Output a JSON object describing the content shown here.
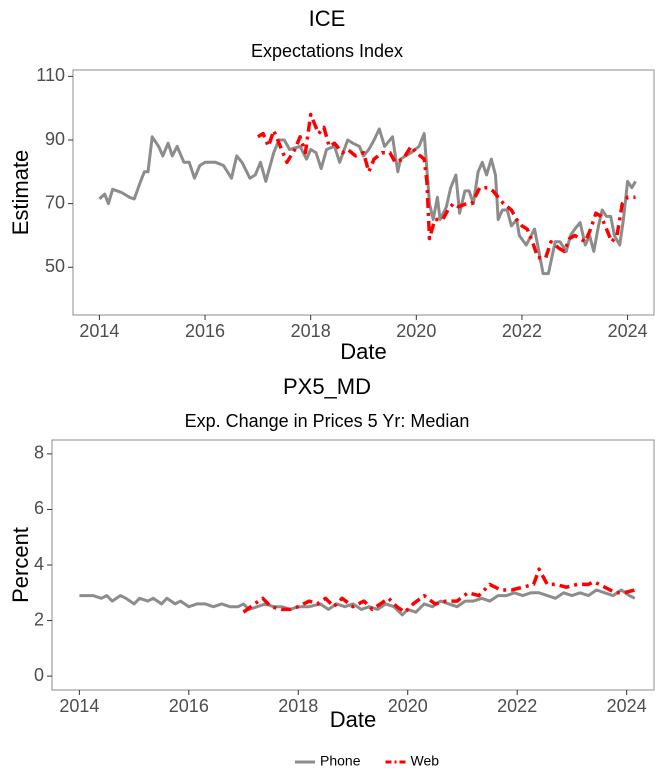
{
  "chart_data": [
    {
      "type": "line",
      "title": "ICE",
      "subtitle": "Expectations Index",
      "x_label": "Date",
      "y_label": "Estimate",
      "xlim": [
        2013.5,
        2024.5
      ],
      "ylim": [
        35,
        112
      ],
      "xticks": [
        2014,
        2016,
        2018,
        2020,
        2022,
        2024
      ],
      "yticks": [
        50,
        70,
        90,
        110
      ],
      "series": [
        {
          "name": "Phone",
          "color": "#8c8c8c",
          "x": [
            2014.0,
            2014.1,
            2014.17,
            2014.25,
            2014.42,
            2014.57,
            2014.66,
            2014.78,
            2014.85,
            2014.92,
            2015.0,
            2015.12,
            2015.2,
            2015.3,
            2015.38,
            2015.47,
            2015.6,
            2015.7,
            2015.8,
            2015.9,
            2016.0,
            2016.2,
            2016.35,
            2016.5,
            2016.6,
            2016.7,
            2016.85,
            2016.95,
            2017.05,
            2017.15,
            2017.3,
            2017.4,
            2017.5,
            2017.6,
            2017.8,
            2017.92,
            2018.0,
            2018.1,
            2018.2,
            2018.3,
            2018.45,
            2018.55,
            2018.7,
            2018.8,
            2018.92,
            2019.0,
            2019.1,
            2019.2,
            2019.3,
            2019.4,
            2019.55,
            2019.65,
            2019.7,
            2019.8,
            2019.9,
            2020.05,
            2020.15,
            2020.25,
            2020.32,
            2020.4,
            2020.45,
            2020.57,
            2020.65,
            2020.75,
            2020.82,
            2020.92,
            2021.0,
            2021.08,
            2021.17,
            2021.25,
            2021.33,
            2021.42,
            2021.5,
            2021.55,
            2021.63,
            2021.72,
            2021.8,
            2021.9,
            2021.95,
            2022.08,
            2022.24,
            2022.4,
            2022.5,
            2022.63,
            2022.72,
            2022.84,
            2022.92,
            2023.0,
            2023.1,
            2023.2,
            2023.28,
            2023.36,
            2023.45,
            2023.52,
            2023.6,
            2023.68,
            2023.75,
            2023.85,
            2023.92,
            2024.0,
            2024.08,
            2024.15
          ],
          "values": [
            71.5,
            73,
            70,
            74.5,
            73.5,
            72,
            71.5,
            77,
            80,
            80,
            91,
            88,
            85,
            89,
            85,
            88,
            83,
            83,
            78,
            82,
            83,
            83,
            82,
            78,
            85,
            83,
            78,
            79,
            83,
            77,
            86,
            90,
            90,
            87,
            88,
            84,
            87,
            86,
            81,
            87,
            88,
            83,
            90,
            89,
            88,
            85,
            87,
            90,
            93.5,
            88,
            91,
            80,
            84,
            85,
            86,
            88,
            92,
            70,
            65,
            72,
            65,
            69,
            75,
            79,
            67,
            74,
            74,
            70,
            80,
            83,
            79,
            84,
            79,
            65,
            68,
            68,
            63,
            65,
            60,
            57,
            62,
            48,
            48,
            58,
            58,
            55,
            60,
            62,
            64,
            57,
            60,
            55,
            63,
            68,
            66,
            66,
            60,
            57,
            65,
            77,
            75,
            77
          ]
        },
        {
          "name": "Web",
          "color": "#ff0000",
          "x": [
            2017.0,
            2017.1,
            2017.2,
            2017.3,
            2017.45,
            2017.55,
            2017.7,
            2017.8,
            2017.9,
            2018.0,
            2018.05,
            2018.15,
            2018.25,
            2018.35,
            2018.45,
            2018.6,
            2018.7,
            2018.85,
            2019.0,
            2019.1,
            2019.2,
            2019.35,
            2019.5,
            2019.6,
            2019.75,
            2019.9,
            2020.0,
            2020.15,
            2020.2,
            2020.25,
            2020.35,
            2020.5,
            2020.6,
            2020.7,
            2020.8,
            2020.95,
            2021.05,
            2021.2,
            2021.35,
            2021.45,
            2021.55,
            2021.65,
            2021.8,
            2021.9,
            2022.0,
            2022.1,
            2022.2,
            2022.3,
            2022.45,
            2022.55,
            2022.7,
            2022.8,
            2022.9,
            2023.0,
            2023.1,
            2023.2,
            2023.3,
            2023.4,
            2023.5,
            2023.6,
            2023.7,
            2023.8,
            2023.9,
            2024.0,
            2024.15
          ],
          "values": [
            91,
            92,
            88,
            93,
            87,
            83,
            87,
            91,
            86,
            98,
            96,
            92,
            94,
            88,
            89,
            86,
            87,
            85,
            86,
            80,
            84,
            86,
            86,
            83,
            84,
            88,
            86,
            84,
            77,
            59,
            65,
            65,
            68,
            70,
            69,
            70,
            70,
            75,
            75,
            74,
            72,
            70,
            68,
            65,
            63,
            62,
            58,
            53,
            53,
            58,
            56,
            55,
            59,
            60,
            59,
            58,
            62,
            67,
            66,
            62,
            58,
            60,
            70,
            72,
            72
          ]
        }
      ]
    },
    {
      "type": "line",
      "title": "PX5_MD",
      "subtitle": "Exp. Change in Prices 5 Yr: Median",
      "x_label": "Date",
      "y_label": "Percent",
      "xlim": [
        2013.5,
        2024.5
      ],
      "ylim": [
        -0.5,
        8.5
      ],
      "xticks": [
        2014,
        2016,
        2018,
        2020,
        2022,
        2024
      ],
      "yticks": [
        0,
        2,
        4,
        6,
        8
      ],
      "series": [
        {
          "name": "Phone",
          "color": "#8c8c8c",
          "x": [
            2014.0,
            2014.25,
            2014.4,
            2014.5,
            2014.6,
            2014.75,
            2014.85,
            2015.0,
            2015.1,
            2015.25,
            2015.35,
            2015.5,
            2015.6,
            2015.75,
            2015.85,
            2016.0,
            2016.15,
            2016.3,
            2016.45,
            2016.6,
            2016.75,
            2016.9,
            2017.0,
            2017.1,
            2017.25,
            2017.4,
            2017.55,
            2017.7,
            2017.85,
            2018.0,
            2018.2,
            2018.4,
            2018.55,
            2018.7,
            2018.85,
            2019.0,
            2019.15,
            2019.3,
            2019.45,
            2019.6,
            2019.75,
            2019.9,
            2020.0,
            2020.15,
            2020.3,
            2020.45,
            2020.6,
            2020.75,
            2020.9,
            2021.05,
            2021.2,
            2021.35,
            2021.5,
            2021.65,
            2021.8,
            2021.95,
            2022.1,
            2022.25,
            2022.4,
            2022.55,
            2022.7,
            2022.85,
            2023.0,
            2023.15,
            2023.3,
            2023.45,
            2023.6,
            2023.75,
            2023.9,
            2024.05,
            2024.15
          ],
          "values": [
            2.9,
            2.9,
            2.8,
            2.9,
            2.7,
            2.9,
            2.8,
            2.6,
            2.8,
            2.7,
            2.8,
            2.6,
            2.8,
            2.6,
            2.7,
            2.5,
            2.6,
            2.6,
            2.5,
            2.6,
            2.5,
            2.5,
            2.6,
            2.4,
            2.5,
            2.6,
            2.5,
            2.5,
            2.4,
            2.5,
            2.5,
            2.6,
            2.4,
            2.6,
            2.5,
            2.6,
            2.4,
            2.5,
            2.4,
            2.6,
            2.5,
            2.2,
            2.4,
            2.3,
            2.6,
            2.5,
            2.7,
            2.6,
            2.5,
            2.7,
            2.7,
            2.8,
            2.7,
            2.9,
            2.9,
            3.0,
            2.9,
            3.0,
            3.0,
            2.9,
            2.8,
            3.0,
            2.9,
            3.0,
            2.9,
            3.1,
            3.0,
            2.9,
            3.1,
            2.9,
            2.8
          ]
        },
        {
          "name": "Web",
          "color": "#ff0000",
          "x": [
            2017.0,
            2017.2,
            2017.35,
            2017.5,
            2017.7,
            2017.85,
            2018.0,
            2018.2,
            2018.35,
            2018.5,
            2018.65,
            2018.8,
            2019.0,
            2019.2,
            2019.35,
            2019.5,
            2019.65,
            2019.8,
            2019.95,
            2020.1,
            2020.3,
            2020.5,
            2020.7,
            2020.9,
            2021.1,
            2021.3,
            2021.5,
            2021.7,
            2021.9,
            2022.1,
            2022.3,
            2022.4,
            2022.55,
            2022.7,
            2022.9,
            2023.1,
            2023.3,
            2023.4,
            2023.6,
            2023.8,
            2023.95,
            2024.15
          ],
          "values": [
            2.3,
            2.6,
            2.8,
            2.5,
            2.4,
            2.4,
            2.5,
            2.7,
            2.6,
            2.8,
            2.5,
            2.8,
            2.5,
            2.7,
            2.4,
            2.6,
            2.8,
            2.5,
            2.3,
            2.6,
            2.9,
            2.6,
            2.7,
            2.7,
            3.0,
            2.9,
            3.3,
            3.1,
            3.1,
            3.2,
            3.3,
            3.85,
            3.3,
            3.3,
            3.2,
            3.3,
            3.3,
            3.4,
            3.2,
            3.0,
            3.0,
            3.1
          ]
        }
      ]
    }
  ]
}
